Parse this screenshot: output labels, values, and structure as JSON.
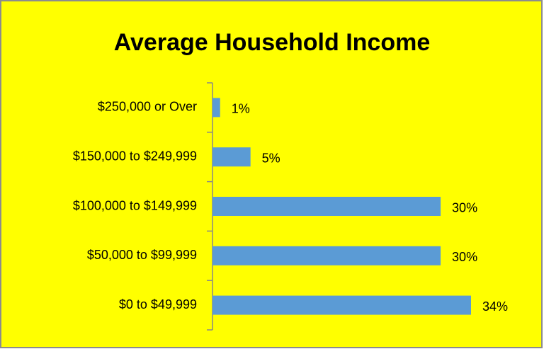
{
  "chart_data": {
    "type": "bar",
    "orientation": "horizontal",
    "title": "Average Household Income",
    "categories": [
      "$250,000 or Over",
      "$150,000 to $249,999",
      "$100,000 to $149,999",
      "$50,000 to $99,999",
      "$0 to $49,999"
    ],
    "values": [
      1,
      5,
      30,
      30,
      34
    ],
    "value_labels": [
      "1%",
      "5%",
      "30%",
      "30%",
      "34%"
    ],
    "color": "#5b9bd5",
    "background": "#ffff00"
  }
}
